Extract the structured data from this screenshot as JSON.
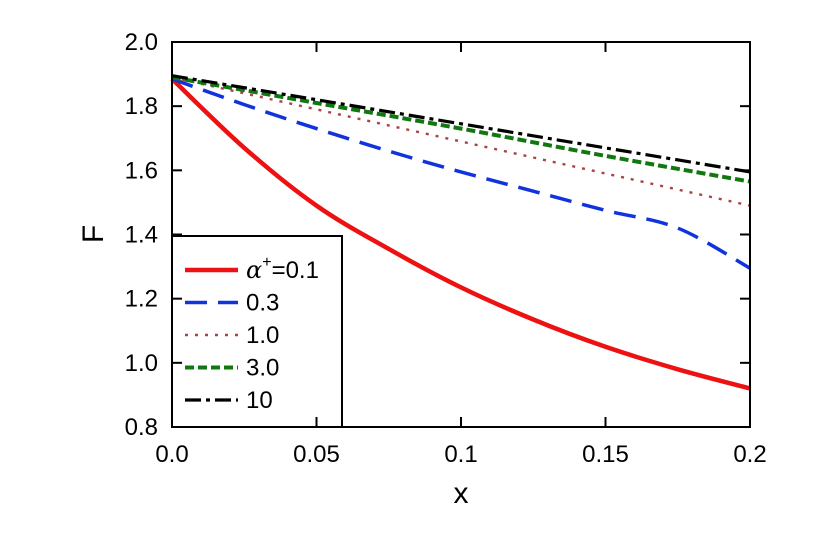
{
  "chart_data": {
    "type": "line",
    "title": "",
    "xlabel": "x",
    "ylabel": "F",
    "xlim": [
      0.0,
      0.2
    ],
    "ylim": [
      0.8,
      2.0
    ],
    "xticks": [
      0.0,
      0.05,
      0.1,
      0.15,
      0.2
    ],
    "xtick_labels": [
      "0.0",
      "0.05",
      "0.1",
      "0.15",
      "0.2"
    ],
    "yticks": [
      0.8,
      1.0,
      1.2,
      1.4,
      1.6,
      1.8,
      2.0
    ],
    "ytick_labels": [
      "0.8",
      "1.0",
      "1.2",
      "1.4",
      "1.6",
      "1.8",
      "2.0"
    ],
    "grid": false,
    "legend_position": "bottom-left",
    "legend_prefix": "α",
    "legend_prefix_sup": "+",
    "series": [
      {
        "name": "=0.1",
        "color": "#ee1111",
        "dash": "solid",
        "x": [
          0,
          0.025,
          0.05,
          0.075,
          0.1,
          0.125,
          0.15,
          0.175,
          0.2
        ],
        "y": [
          1.885,
          1.67,
          1.49,
          1.355,
          1.235,
          1.135,
          1.05,
          0.98,
          0.92
        ]
      },
      {
        "name": "0.3",
        "color": "#1133dd",
        "dash": "dashed",
        "x": [
          0,
          0.025,
          0.05,
          0.075,
          0.1,
          0.125,
          0.15,
          0.175,
          0.2
        ],
        "y": [
          1.885,
          1.805,
          1.73,
          1.66,
          1.595,
          1.535,
          1.475,
          1.42,
          1.295
        ]
      },
      {
        "name": "1.0",
        "color": "#aa4444",
        "dash": "dotted",
        "x": [
          0,
          0.05,
          0.1,
          0.15,
          0.2
        ],
        "y": [
          1.89,
          1.79,
          1.69,
          1.59,
          1.49
        ]
      },
      {
        "name": "3.0",
        "color": "#117711",
        "dash": "short-dashed",
        "x": [
          0,
          0.05,
          0.1,
          0.15,
          0.2
        ],
        "y": [
          1.89,
          1.81,
          1.73,
          1.645,
          1.565
        ]
      },
      {
        "name": "10",
        "color": "#000000",
        "dash": "dash-dot",
        "x": [
          0,
          0.05,
          0.1,
          0.15,
          0.2
        ],
        "y": [
          1.895,
          1.82,
          1.745,
          1.67,
          1.595
        ]
      }
    ]
  }
}
